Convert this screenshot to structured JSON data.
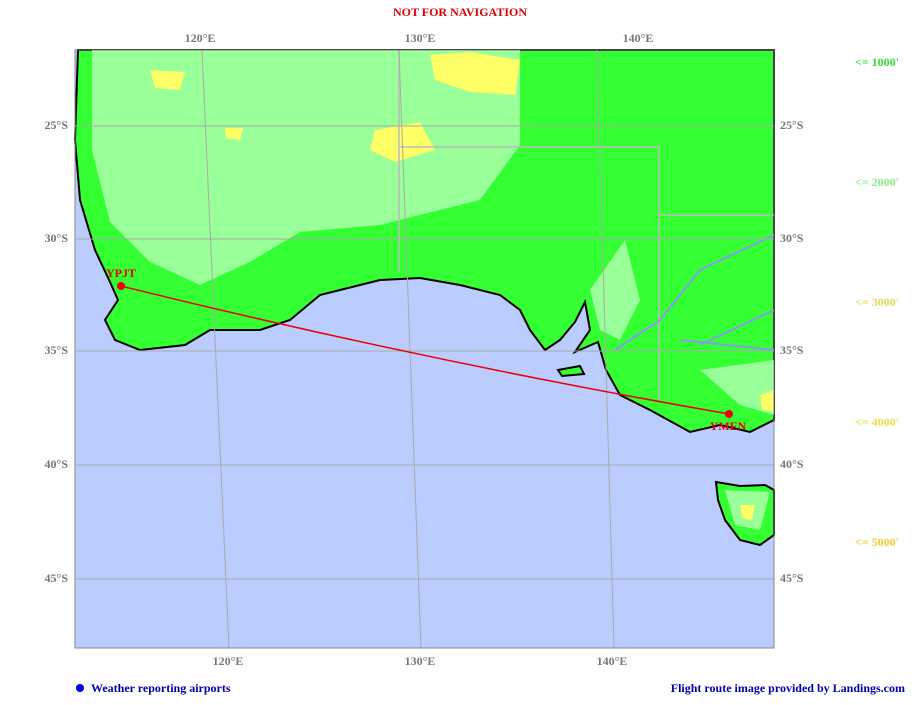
{
  "header": {
    "title": "NOT FOR NAVIGATION"
  },
  "map": {
    "top_labels": [
      "120°E",
      "130°E",
      "140°E"
    ],
    "bottom_labels": [
      "120°E",
      "130°E",
      "140°E"
    ],
    "left_labels": [
      "25°S",
      "30°S",
      "35°S",
      "40°S",
      "45°S"
    ],
    "right_labels": [
      "25°S",
      "30°S",
      "35°S",
      "40°S",
      "45°S"
    ],
    "airports": [
      {
        "code": "YPJT"
      },
      {
        "code": "YMEN"
      }
    ]
  },
  "legend": {
    "entries": [
      {
        "label": "<= 1000'",
        "color": "#33dd33"
      },
      {
        "label": "<= 2000'",
        "color": "#88ee88"
      },
      {
        "label": "<= 3000'",
        "color": "#dddd55"
      },
      {
        "label": "<= 4000'",
        "color": "#eedd44"
      },
      {
        "label": "<= 5000'",
        "color": "#eecc33"
      }
    ]
  },
  "footer": {
    "left": "Weather reporting airports",
    "right": "Flight route image provided by Landings.com"
  }
}
